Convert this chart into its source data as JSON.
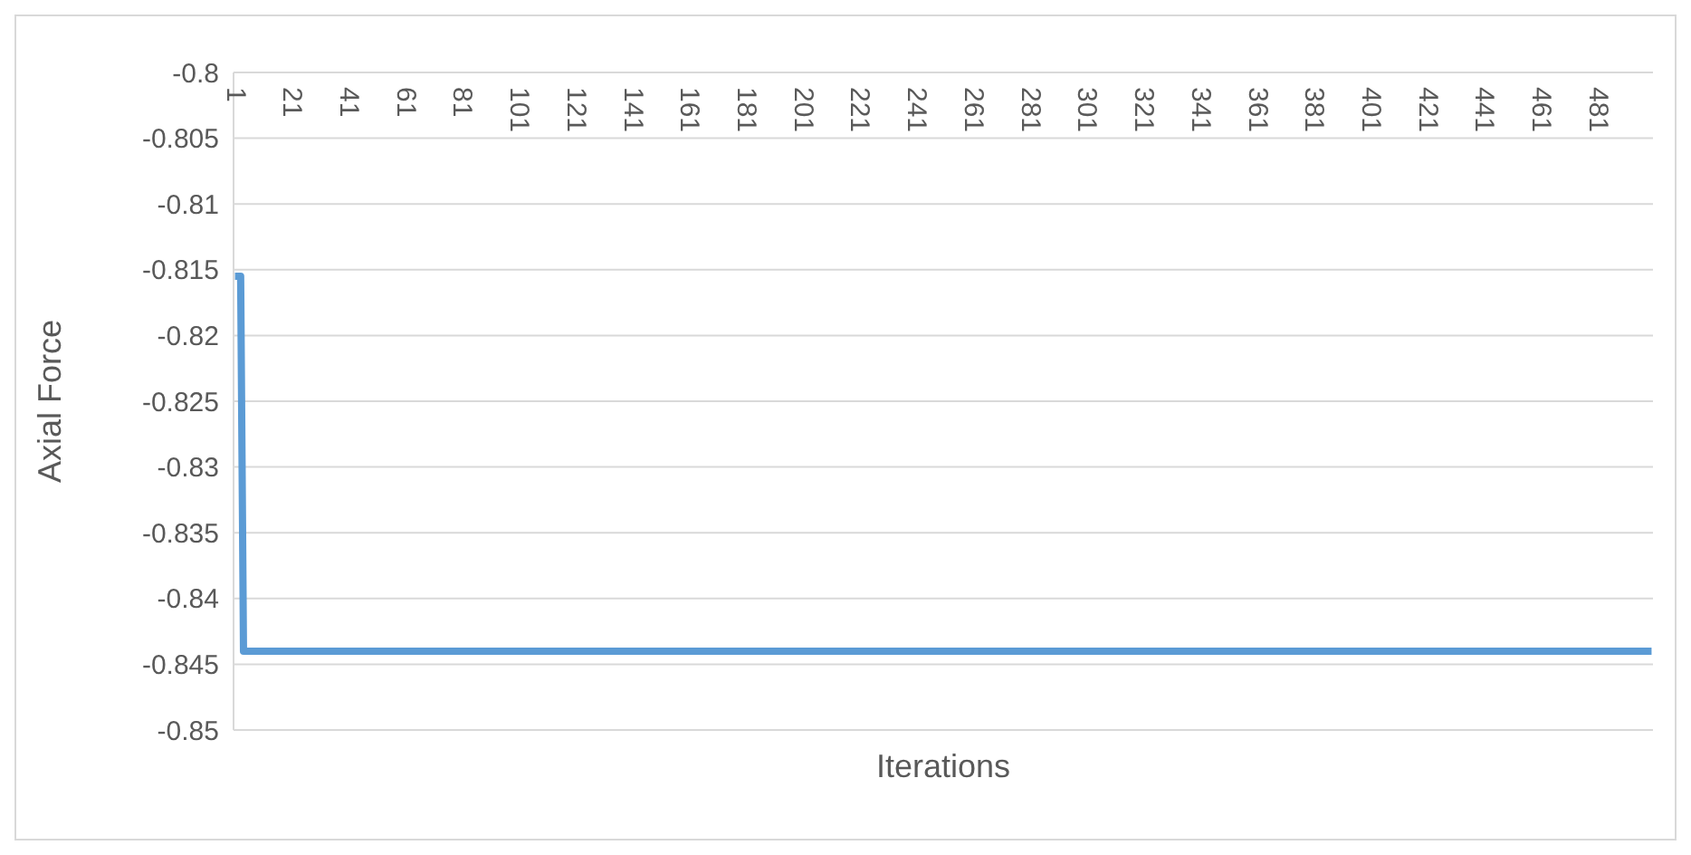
{
  "chart_data": {
    "type": "line",
    "xlabel": "Iterations",
    "ylabel": "Axial Force",
    "x": [
      1,
      3,
      4,
      500
    ],
    "series": [
      {
        "color": "#5b9bd5",
        "values": [
          -0.8155,
          -0.8155,
          -0.844,
          -0.844
        ]
      }
    ],
    "xlim": [
      0.5,
      500.5
    ],
    "xticks": [
      1,
      21,
      41,
      61,
      81,
      101,
      121,
      141,
      161,
      181,
      201,
      221,
      241,
      261,
      281,
      301,
      321,
      341,
      361,
      381,
      401,
      421,
      441,
      461,
      481
    ],
    "ylim": [
      -0.85,
      -0.8
    ],
    "yticks": [
      -0.85,
      -0.845,
      -0.84,
      -0.835,
      -0.83,
      -0.825,
      -0.82,
      -0.815,
      -0.81,
      -0.805,
      -0.8
    ],
    "grid": "y",
    "legend": false,
    "marker": "none",
    "line_style": "solid"
  }
}
